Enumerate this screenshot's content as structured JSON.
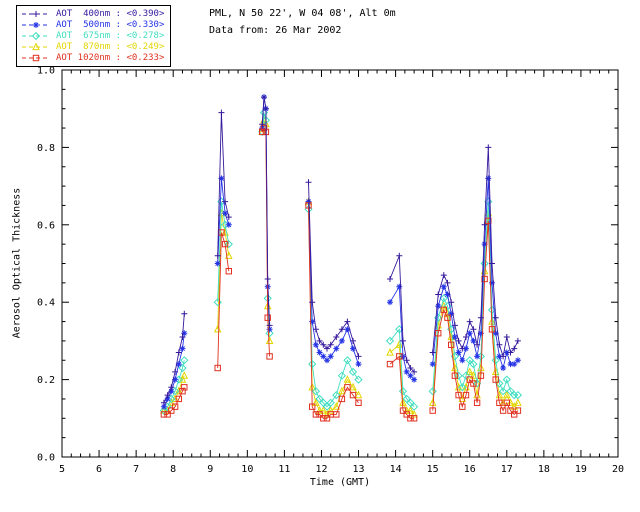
{
  "header": {
    "line1": "PML, N 50 22', W 04 08', Alt 0m",
    "line2": "Data from: 26 Mar 2002"
  },
  "chart_data": {
    "type": "line",
    "title": "",
    "xlabel": "Time (GMT)",
    "ylabel": "Aerosol Optical Thickness",
    "xlim": [
      5,
      20
    ],
    "ylim": [
      0.0,
      1.0
    ],
    "xticks": [
      5,
      6,
      7,
      8,
      9,
      10,
      11,
      12,
      13,
      14,
      15,
      16,
      17,
      18,
      19,
      20
    ],
    "yticks": [
      0.0,
      0.2,
      0.4,
      0.6,
      0.8,
      1.0
    ],
    "grid": false,
    "legend_position": "top-left",
    "x": [
      7.75,
      7.85,
      7.95,
      8.05,
      8.15,
      8.25,
      8.3,
      9.2,
      9.3,
      9.4,
      9.5,
      10.4,
      10.45,
      10.5,
      10.55,
      10.6,
      11.65,
      11.75,
      11.85,
      11.95,
      12.05,
      12.15,
      12.25,
      12.4,
      12.55,
      12.7,
      12.85,
      13.0,
      13.85,
      14.1,
      14.2,
      14.3,
      14.4,
      14.5,
      15.0,
      15.15,
      15.3,
      15.4,
      15.5,
      15.6,
      15.7,
      15.8,
      15.9,
      16.0,
      16.1,
      16.2,
      16.3,
      16.4,
      16.5,
      16.6,
      16.7,
      16.8,
      16.9,
      17.0,
      17.1,
      17.2,
      17.3
    ],
    "series": [
      {
        "id": "400nm",
        "name": "AOT 400nm",
        "mean": "<0.390>",
        "legend_label": "AOT  400nm : <0.390>",
        "color": "#35189c",
        "marker": "plus",
        "values": [
          0.14,
          0.16,
          0.18,
          0.22,
          0.27,
          0.31,
          0.37,
          0.52,
          0.89,
          0.66,
          0.62,
          0.86,
          0.93,
          0.9,
          0.46,
          0.34,
          0.71,
          0.4,
          0.33,
          0.3,
          0.29,
          0.28,
          0.29,
          0.31,
          0.33,
          0.35,
          0.3,
          0.26,
          0.46,
          0.52,
          0.3,
          0.25,
          0.23,
          0.22,
          0.27,
          0.42,
          0.47,
          0.45,
          0.4,
          0.34,
          0.3,
          0.28,
          0.31,
          0.35,
          0.33,
          0.29,
          0.36,
          0.6,
          0.8,
          0.5,
          0.36,
          0.29,
          0.26,
          0.31,
          0.27,
          0.28,
          0.3
        ]
      },
      {
        "id": "500nm",
        "name": "AOT 500nm",
        "mean": "<0.330>",
        "legend_label": "AOT  500nm : <0.330>",
        "color": "#2433e6",
        "marker": "asterisk",
        "values": [
          0.13,
          0.15,
          0.17,
          0.2,
          0.24,
          0.28,
          0.32,
          0.5,
          0.72,
          0.63,
          0.6,
          0.85,
          0.93,
          0.9,
          0.44,
          0.33,
          0.66,
          0.35,
          0.29,
          0.27,
          0.26,
          0.25,
          0.26,
          0.28,
          0.3,
          0.33,
          0.28,
          0.24,
          0.4,
          0.44,
          0.26,
          0.22,
          0.21,
          0.2,
          0.24,
          0.39,
          0.44,
          0.42,
          0.37,
          0.31,
          0.27,
          0.25,
          0.28,
          0.32,
          0.3,
          0.26,
          0.32,
          0.55,
          0.72,
          0.45,
          0.32,
          0.26,
          0.23,
          0.27,
          0.24,
          0.24,
          0.25
        ]
      },
      {
        "id": "675nm",
        "name": "AOT 675nm",
        "mean": "<0.278>",
        "legend_label": "AOT  675nm : <0.278>",
        "color": "#3fdec0",
        "marker": "diamond",
        "values": [
          0.12,
          0.13,
          0.15,
          0.17,
          0.2,
          0.23,
          0.25,
          0.4,
          0.66,
          0.6,
          0.55,
          0.84,
          0.89,
          0.87,
          0.41,
          0.32,
          0.64,
          0.24,
          0.17,
          0.15,
          0.14,
          0.13,
          0.14,
          0.16,
          0.21,
          0.25,
          0.22,
          0.2,
          0.3,
          0.33,
          0.17,
          0.15,
          0.14,
          0.13,
          0.17,
          0.36,
          0.41,
          0.39,
          0.33,
          0.26,
          0.21,
          0.18,
          0.21,
          0.25,
          0.24,
          0.19,
          0.26,
          0.5,
          0.66,
          0.38,
          0.25,
          0.19,
          0.17,
          0.2,
          0.17,
          0.16,
          0.16
        ]
      },
      {
        "id": "870nm",
        "name": "AOT 870nm",
        "mean": "<0.249>",
        "legend_label": "AOT  870nm : <0.249>",
        "color": "#e2d600",
        "marker": "triangle",
        "values": [
          0.12,
          0.12,
          0.14,
          0.15,
          0.17,
          0.2,
          0.21,
          0.33,
          0.63,
          0.58,
          0.52,
          0.84,
          0.87,
          0.86,
          0.39,
          0.3,
          0.66,
          0.18,
          0.14,
          0.12,
          0.12,
          0.11,
          0.12,
          0.13,
          0.17,
          0.2,
          0.18,
          0.16,
          0.27,
          0.29,
          0.14,
          0.12,
          0.12,
          0.11,
          0.14,
          0.34,
          0.39,
          0.37,
          0.31,
          0.23,
          0.18,
          0.15,
          0.18,
          0.22,
          0.21,
          0.16,
          0.23,
          0.48,
          0.63,
          0.35,
          0.22,
          0.16,
          0.14,
          0.16,
          0.14,
          0.13,
          0.14
        ]
      },
      {
        "id": "1020nm",
        "name": "AOT 1020nm",
        "mean": "<0.233>",
        "legend_label": "AOT 1020nm : <0.233>",
        "color": "#e03020",
        "marker": "square",
        "values": [
          0.11,
          0.11,
          0.12,
          0.13,
          0.15,
          0.17,
          0.18,
          0.23,
          0.58,
          0.55,
          0.48,
          0.84,
          0.85,
          0.84,
          0.36,
          0.26,
          0.65,
          0.13,
          0.11,
          0.11,
          0.1,
          0.1,
          0.11,
          0.11,
          0.15,
          0.18,
          0.16,
          0.14,
          0.24,
          0.26,
          0.12,
          0.11,
          0.1,
          0.1,
          0.12,
          0.32,
          0.38,
          0.36,
          0.29,
          0.21,
          0.16,
          0.13,
          0.16,
          0.2,
          0.19,
          0.14,
          0.21,
          0.46,
          0.61,
          0.33,
          0.2,
          0.14,
          0.12,
          0.14,
          0.12,
          0.11,
          0.12
        ]
      }
    ]
  }
}
